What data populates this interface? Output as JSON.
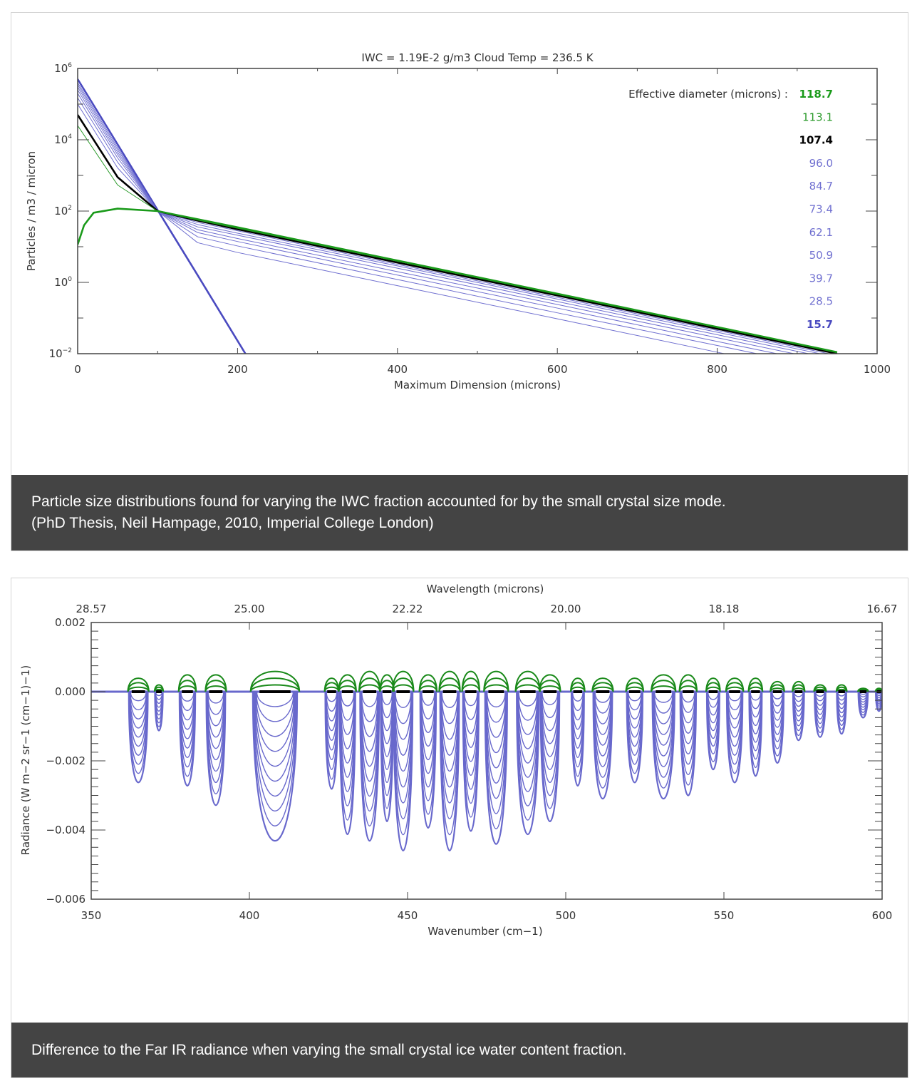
{
  "panels": [
    {
      "caption_line1": "Particle size distributions found for varying the IWC fraction accounted for by the small crystal size mode.",
      "caption_line2": "(PhD Thesis, Neil Hampage, 2010, Imperial College London)"
    },
    {
      "caption_line1": "Difference to the Far IR radiance when varying the small crystal ice water content fraction."
    }
  ],
  "chart_data": [
    {
      "type": "line",
      "title": "IWC = 1.19E-2 g/m3 Cloud Temp = 236.5 K",
      "xlabel": "Maximum Dimension (microns)",
      "ylabel": "Particles / m3 / micron",
      "xlim": [
        0,
        1000
      ],
      "ylim": [
        0.01,
        1000000
      ],
      "y_scale": "log",
      "x_ticks": [
        "0",
        "200",
        "400",
        "600",
        "800",
        "1000"
      ],
      "y_ticks": [
        {
          "base": "10",
          "exp": "6"
        },
        {
          "base": "10",
          "exp": "4"
        },
        {
          "base": "10",
          "exp": "2"
        },
        {
          "base": "10",
          "exp": "0"
        },
        {
          "base": "10",
          "exp": "−2"
        }
      ],
      "legend_title": "Effective diameter (microns) :",
      "legend_placement": "top-right",
      "x": [
        0,
        50,
        100,
        150,
        200,
        400,
        600,
        800,
        950
      ],
      "series": [
        {
          "name": "118.7",
          "color": "#1a9a1a",
          "bold": true,
          "values": [
            11.5,
            117,
            100,
            59,
            35,
            4.1,
            0.48,
            0.056,
            0.011
          ]
        },
        {
          "name": "113.1",
          "color": "#2a9a2a",
          "bold": false,
          "values": [
            25000,
            537,
            100,
            56,
            33,
            3.9,
            0.46,
            0.054,
            0.011
          ]
        },
        {
          "name": "107.4",
          "color": "#000000",
          "bold": true,
          "values": [
            50000,
            891,
            100,
            54,
            31,
            3.6,
            0.43,
            0.05,
            0.01
          ]
        },
        {
          "name": "96.0",
          "color": "#7070d0",
          "bold": false,
          "values": [
            100000,
            1620,
            100,
            48,
            28,
            3.2,
            0.38,
            0.045,
            0.0089
          ]
        },
        {
          "name": "84.7",
          "color": "#7070d0",
          "bold": false,
          "values": [
            150000,
            2340,
            100,
            42,
            24,
            2.9,
            0.34,
            0.04,
            0.0079
          ]
        },
        {
          "name": "73.4",
          "color": "#7070d0",
          "bold": false,
          "values": [
            200000,
            3090,
            100,
            36,
            21,
            2.5,
            0.29,
            0.034,
            0.0068
          ]
        },
        {
          "name": "62.1",
          "color": "#7070d0",
          "bold": false,
          "values": [
            250000,
            3800,
            100,
            30,
            17,
            2.0,
            0.24,
            0.028,
            0.0056
          ]
        },
        {
          "name": "50.9",
          "color": "#7070d0",
          "bold": false,
          "values": [
            300000,
            4470,
            100,
            25,
            14,
            1.6,
            0.19,
            0.022,
            0.0045
          ]
        },
        {
          "name": "39.7",
          "color": "#7070d0",
          "bold": false,
          "values": [
            350000,
            5250,
            100,
            19,
            10.5,
            1.2,
            0.14,
            0.017,
            0.0034
          ]
        },
        {
          "name": "28.5",
          "color": "#7070d0",
          "bold": false,
          "values": [
            400000,
            6030,
            100,
            13,
            6.9,
            0.81,
            0.095,
            0.011,
            0.0022
          ]
        },
        {
          "name": "15.7",
          "color": "#4a4ac0",
          "bold": true,
          "values": [
            500000,
            7410,
            107,
            1.6,
            0.023,
            null,
            null,
            null,
            null
          ]
        }
      ]
    },
    {
      "type": "line",
      "xlabel": "Wavenumber (cm−1)",
      "ylabel": "Radiance (W m−2 sr−1 (cm−1)−1)",
      "top_xlabel": "Wavelength (microns)",
      "xlim": [
        350,
        600
      ],
      "ylim": [
        -0.006,
        0.002
      ],
      "x_ticks": [
        "350",
        "400",
        "450",
        "500",
        "550",
        "600"
      ],
      "top_x_ticks": [
        "28.57",
        "25.00",
        "22.22",
        "20.00",
        "18.18",
        "16.67"
      ],
      "y_ticks": [
        "0.002",
        "0.000",
        "−0.002",
        "−0.004",
        "−0.006"
      ],
      "y_tick_values": [
        0.002,
        0,
        -0.002,
        -0.004,
        -0.006
      ],
      "colors": {
        "positive": "#1a8a1a",
        "negative": "#6868cc",
        "baseline": "#000000"
      },
      "bands": [
        {
          "center": 364.9,
          "width": 6,
          "min": -0.0028,
          "max": 0.0004
        },
        {
          "center": 371.4,
          "width": 2.5,
          "min": -0.0012,
          "max": 0.0002
        },
        {
          "center": 380.4,
          "width": 5,
          "min": -0.0029,
          "max": 0.0005
        },
        {
          "center": 389.4,
          "width": 6,
          "min": -0.0035,
          "max": 0.0005
        },
        {
          "center": 408.1,
          "width": 14,
          "min": -0.0046,
          "max": 0.0006
        },
        {
          "center": 426.0,
          "width": 4,
          "min": -0.003,
          "max": 0.0004
        },
        {
          "center": 431.0,
          "width": 5,
          "min": -0.0044,
          "max": 0.0005
        },
        {
          "center": 438.0,
          "width": 6,
          "min": -0.0046,
          "max": 0.0006
        },
        {
          "center": 443.5,
          "width": 4,
          "min": -0.004,
          "max": 0.0005
        },
        {
          "center": 448.6,
          "width": 6,
          "min": -0.0049,
          "max": 0.0006
        },
        {
          "center": 456.5,
          "width": 5,
          "min": -0.0042,
          "max": 0.0005
        },
        {
          "center": 463.3,
          "width": 6,
          "min": -0.0049,
          "max": 0.0006
        },
        {
          "center": 470.0,
          "width": 5,
          "min": -0.0043,
          "max": 0.0006
        },
        {
          "center": 478.0,
          "width": 7,
          "min": -0.0047,
          "max": 0.0006
        },
        {
          "center": 488.0,
          "width": 7,
          "min": -0.0044,
          "max": 0.0006
        },
        {
          "center": 495.0,
          "width": 6,
          "min": -0.004,
          "max": 0.0005
        },
        {
          "center": 503.8,
          "width": 4,
          "min": -0.0029,
          "max": 0.0004
        },
        {
          "center": 511.7,
          "width": 6,
          "min": -0.0033,
          "max": 0.0004
        },
        {
          "center": 521.8,
          "width": 5,
          "min": -0.0028,
          "max": 0.0004
        },
        {
          "center": 530.9,
          "width": 7,
          "min": -0.0033,
          "max": 0.0005
        },
        {
          "center": 538.7,
          "width": 5,
          "min": -0.0032,
          "max": 0.0005
        },
        {
          "center": 546.6,
          "width": 4,
          "min": -0.0024,
          "max": 0.0004
        },
        {
          "center": 553.4,
          "width": 5,
          "min": -0.0028,
          "max": 0.0004
        },
        {
          "center": 560.0,
          "width": 4,
          "min": -0.0026,
          "max": 0.0004
        },
        {
          "center": 566.9,
          "width": 4,
          "min": -0.0022,
          "max": 0.0003
        },
        {
          "center": 573.6,
          "width": 3.5,
          "min": -0.0015,
          "max": 0.0003
        },
        {
          "center": 580.4,
          "width": 3.5,
          "min": -0.0014,
          "max": 0.0002
        },
        {
          "center": 587.2,
          "width": 3,
          "min": -0.0013,
          "max": 0.0002
        },
        {
          "center": 594.0,
          "width": 3,
          "min": -0.0008,
          "max": 0.0001
        },
        {
          "center": 599.0,
          "width": 2,
          "min": -0.0006,
          "max": 0.0001
        }
      ],
      "fraction_levels": 10
    }
  ]
}
